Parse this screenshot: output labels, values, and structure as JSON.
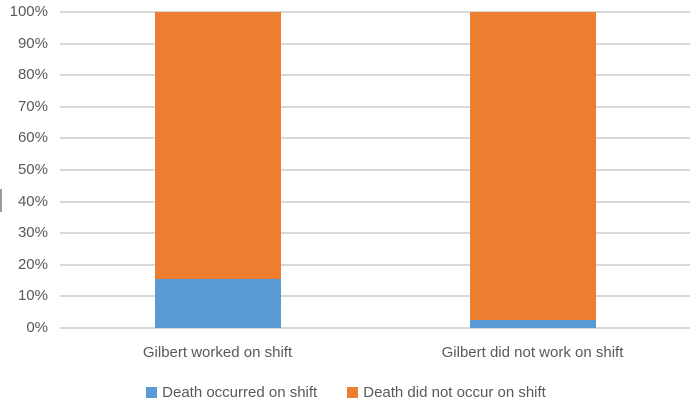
{
  "chart_data": {
    "type": "bar",
    "subtype": "100%-stacked-column",
    "title": "",
    "xlabel": "",
    "ylabel": "",
    "categories": [
      "Gilbert worked on shift",
      "Gilbert did not work on shift"
    ],
    "series": [
      {
        "name": "Death occurred on shift",
        "color": "#5B9BD5",
        "values": [
          15.6,
          2.5
        ]
      },
      {
        "name": "Death did not occur on shift",
        "color": "#ED7D31",
        "values": [
          84.4,
          97.5
        ]
      }
    ],
    "ylim": [
      0,
      100
    ],
    "ytick_step": 10,
    "ytick_labels": [
      "0%",
      "10%",
      "20%",
      "30%",
      "40%",
      "50%",
      "60%",
      "70%",
      "80%",
      "90%",
      "100%"
    ],
    "grid": true,
    "gridline_color": "#D9D9D9",
    "axis_label_color": "#595959",
    "legend_position": "bottom"
  }
}
